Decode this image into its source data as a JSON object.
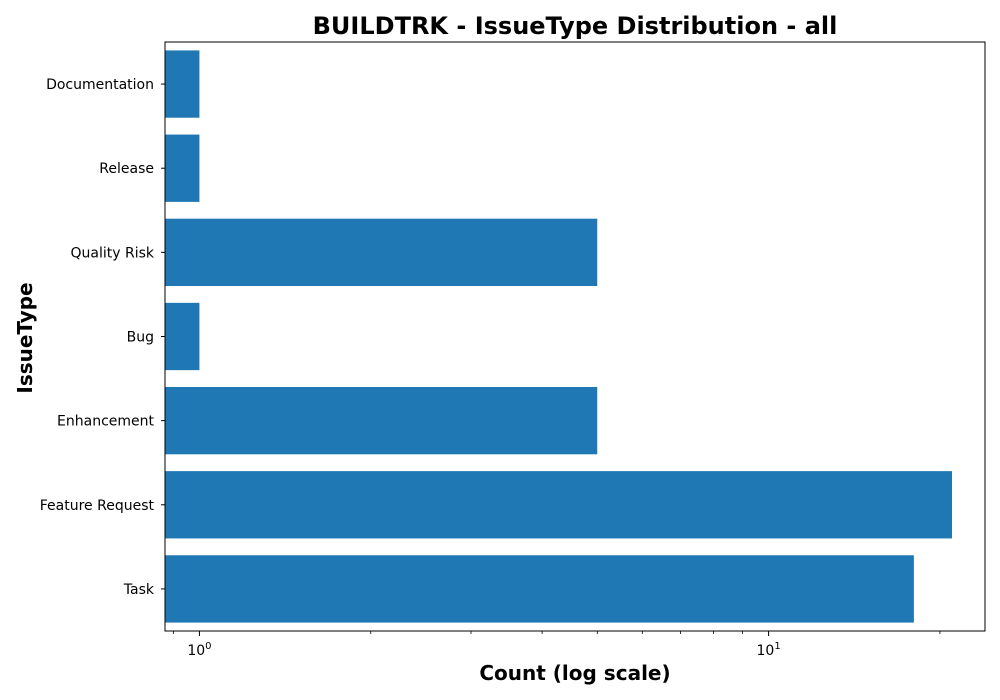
{
  "chart_data": {
    "type": "bar",
    "orientation": "horizontal",
    "title": "BUILDTRK - IssueType Distribution - all",
    "xlabel": "Count (log scale)",
    "ylabel": "IssueType",
    "x_scale": "log",
    "xlim": [
      0.87,
      24
    ],
    "x_ticks": [
      {
        "value": 1,
        "base": "10",
        "exp": "0"
      },
      {
        "value": 10,
        "base": "10",
        "exp": "1"
      }
    ],
    "categories": [
      "Task",
      "Feature Request",
      "Enhancement",
      "Bug",
      "Quality Risk",
      "Release",
      "Documentation"
    ],
    "values": [
      18,
      21,
      5,
      1,
      5,
      1,
      1
    ],
    "bar_color": "#1f77b4",
    "grid": false,
    "legend": "none"
  }
}
